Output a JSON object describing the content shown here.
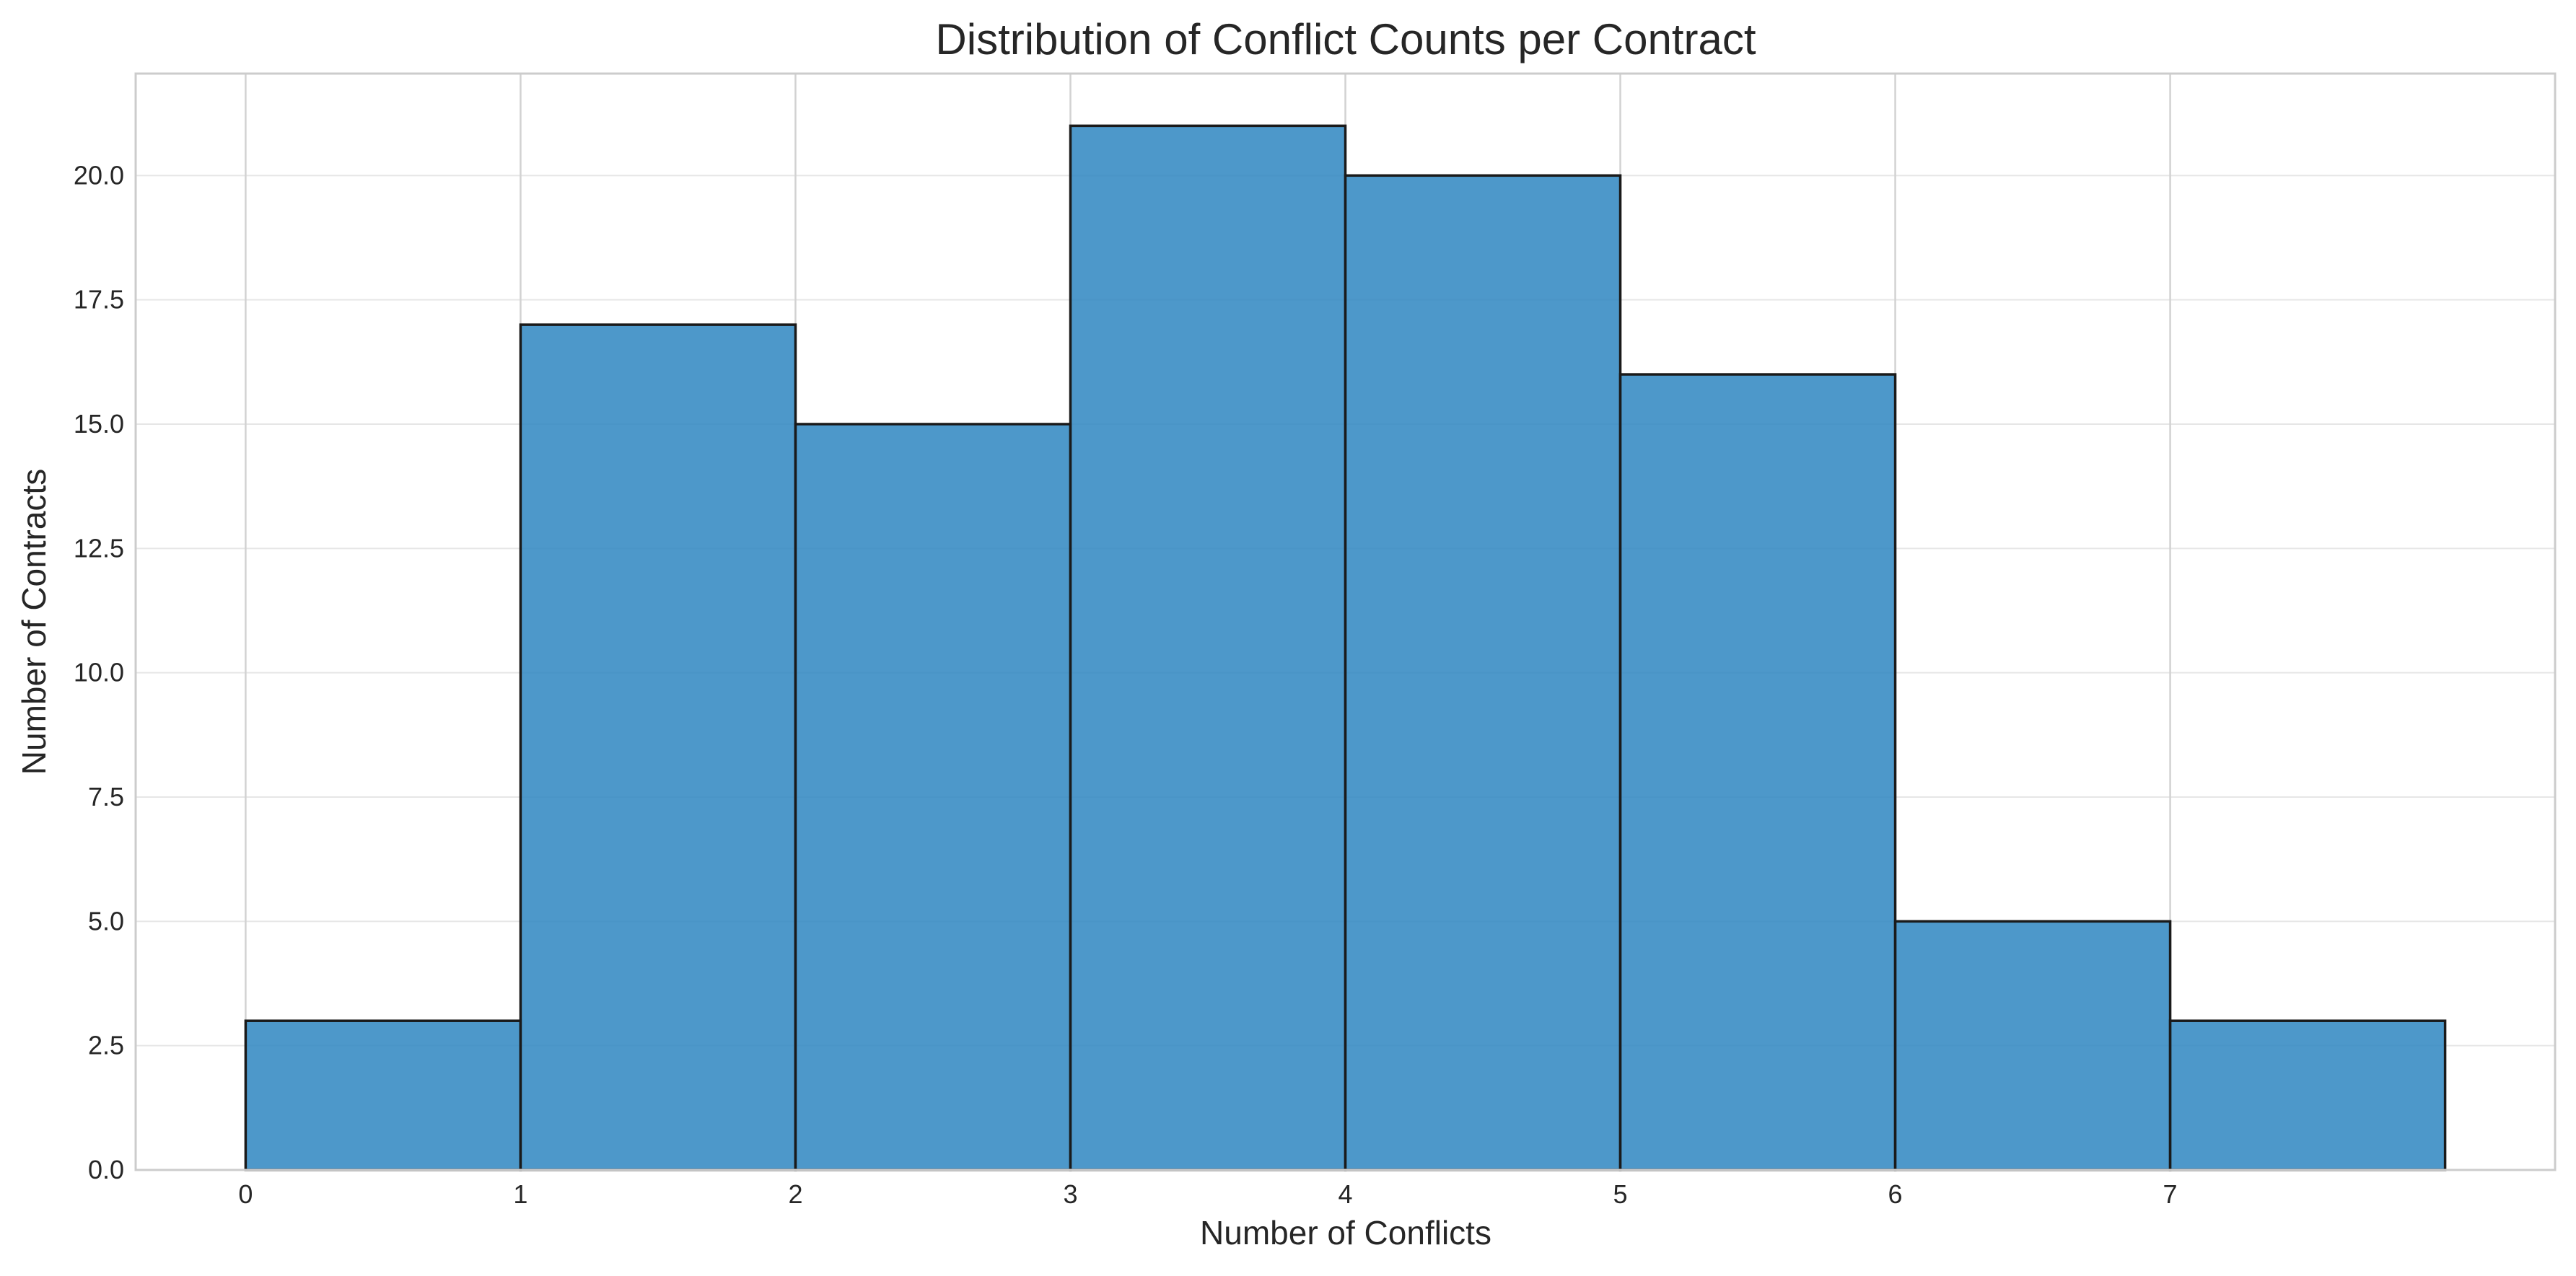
{
  "chart_data": {
    "type": "bar",
    "title": "Distribution of Conflict Counts per Contract",
    "xlabel": "Number of Conflicts",
    "ylabel": "Number of Contracts",
    "bins": [
      {
        "start": 0,
        "end": 1,
        "count": 3
      },
      {
        "start": 1,
        "end": 2,
        "count": 17
      },
      {
        "start": 2,
        "end": 3,
        "count": 15
      },
      {
        "start": 3,
        "end": 4,
        "count": 21
      },
      {
        "start": 4,
        "end": 5,
        "count": 20
      },
      {
        "start": 5,
        "end": 6,
        "count": 16
      },
      {
        "start": 6,
        "end": 7,
        "count": 5
      },
      {
        "start": 7,
        "end": 8,
        "count": 3
      }
    ],
    "xticks": [
      "0",
      "1",
      "2",
      "3",
      "4",
      "5",
      "6",
      "7"
    ],
    "yticks": [
      "0.0",
      "2.5",
      "5.0",
      "7.5",
      "10.0",
      "12.5",
      "15.0",
      "17.5",
      "20.0"
    ],
    "xlim": [
      -0.4,
      8.4
    ],
    "ylim": [
      0,
      22.05
    ],
    "grid": true,
    "colors": {
      "bar_fill": "#2e86c1",
      "bar_edge": "#1a1a1a",
      "grid": "#e6e6e6",
      "frame": "#cccccc"
    }
  }
}
